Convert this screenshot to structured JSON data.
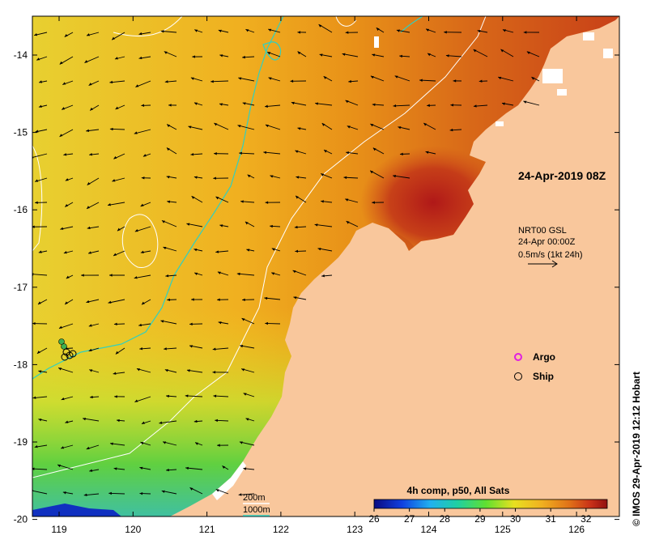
{
  "map": {
    "lon_ticks": [
      "119",
      "120",
      "121",
      "122",
      "123",
      "124",
      "125",
      "126"
    ],
    "lat_ticks": [
      "-14",
      "-15",
      "-16",
      "-17",
      "-18",
      "-19",
      "-20"
    ],
    "timestamp": "24-Apr-2019 08Z",
    "current_legend": {
      "line1": "NRT00 GSL",
      "line2": "24-Apr 00:00Z",
      "line3": "0.5m/s (1kt 24h)"
    },
    "markers": {
      "argo_label": "Argo",
      "ship_label": "Ship",
      "argo_color": "#e020e0"
    },
    "isobaths": {
      "label_200": "200m",
      "label_1000": "1000m",
      "color_200": "#ffffff",
      "color_1000": "#30d0c0"
    },
    "colorbar": {
      "title": "4h comp, p50, All Sats",
      "labels": [
        "26",
        "27",
        "28",
        "29",
        "30",
        "31",
        "32"
      ],
      "unit_range": [
        26,
        32.6
      ]
    },
    "credit": "© IMOS 29-Apr-2019 12:12 Hobart",
    "colors": {
      "land": "#f9c79c",
      "sst_warm": "#c0301a",
      "sst_mid": "#f0a020",
      "sst_cool": "#60d040"
    }
  }
}
